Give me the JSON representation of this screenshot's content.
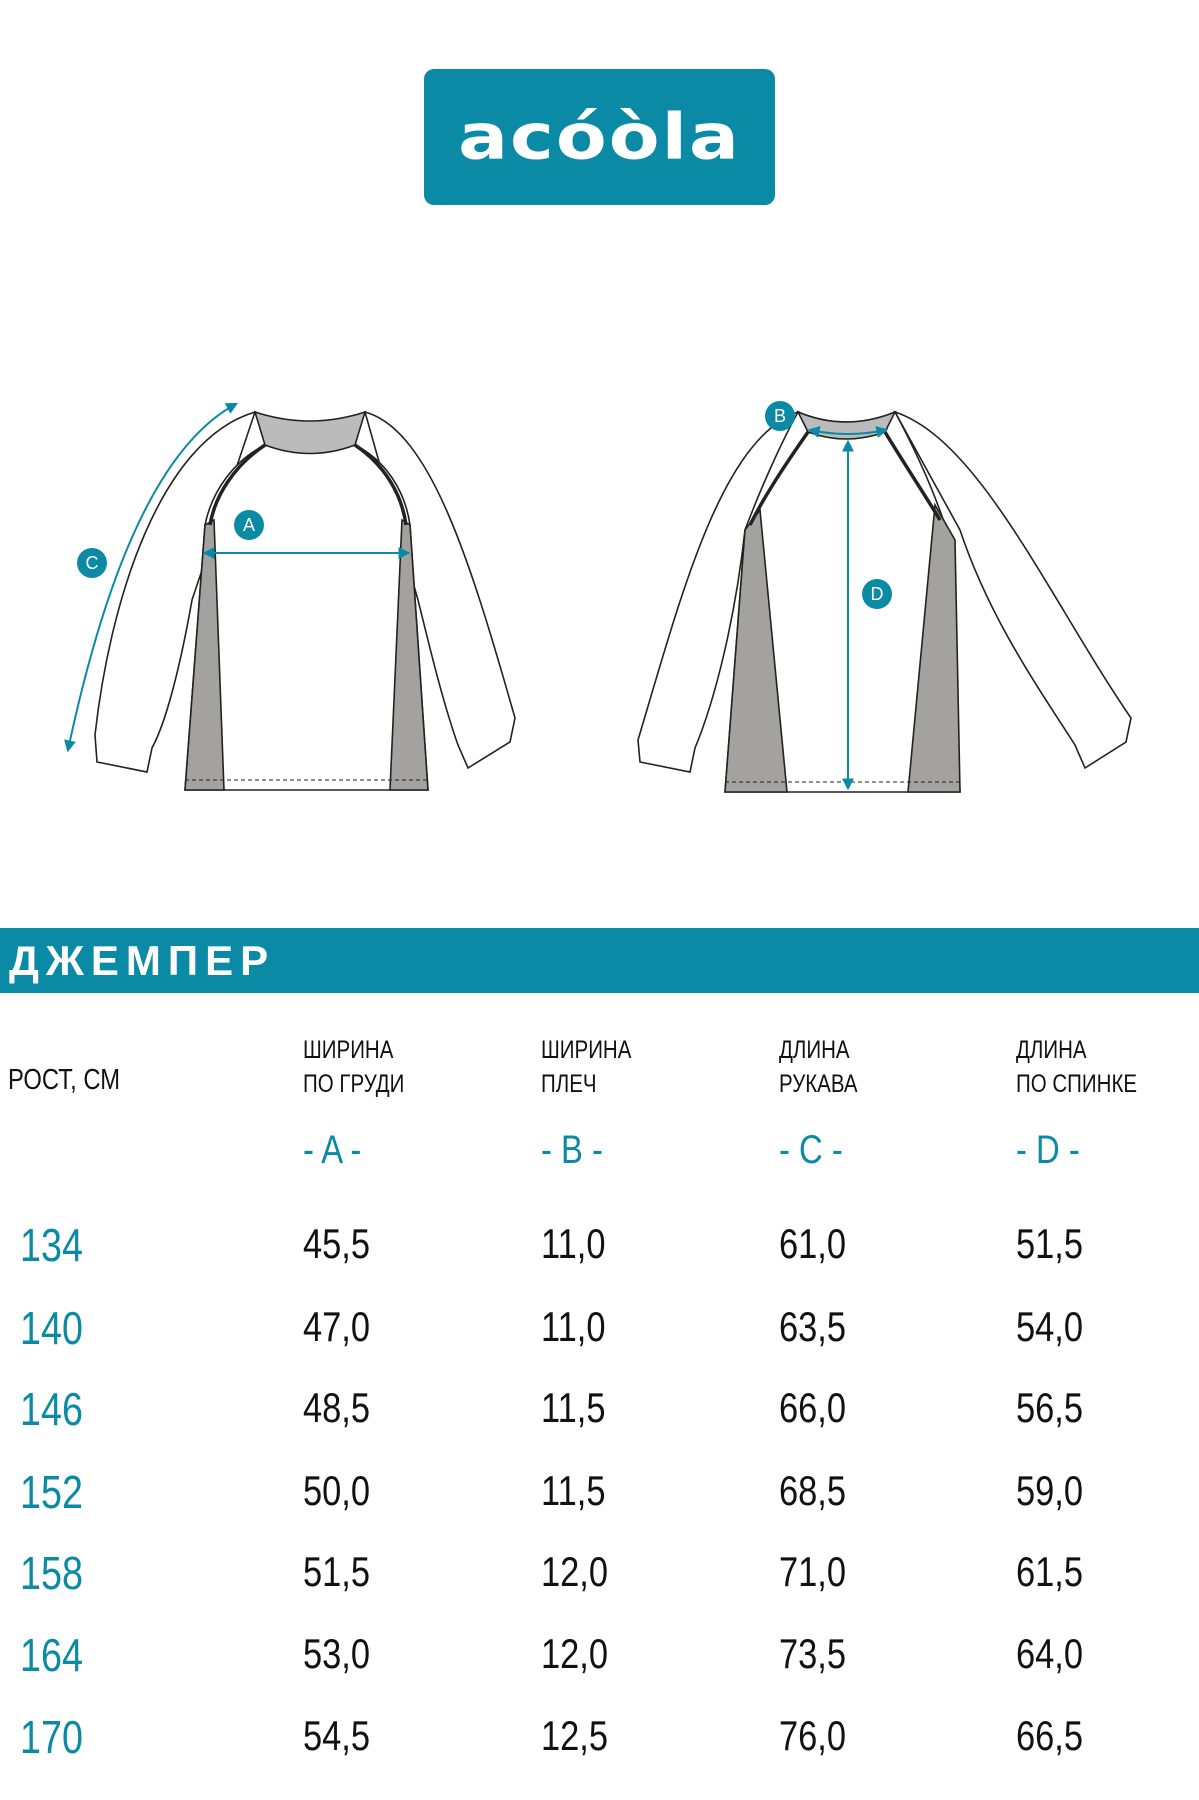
{
  "brand": {
    "logo_text": "acóòla",
    "color": "#0b8aa6"
  },
  "diagram": {
    "markers": [
      "A",
      "B",
      "C",
      "D"
    ]
  },
  "product_title": "ДЖЕМПЕР",
  "table": {
    "first_header": "РОСТ, СМ",
    "columns": [
      {
        "line1": "ШИРИНА",
        "line2": "ПО ГРУДИ",
        "letter": "- A -"
      },
      {
        "line1": "ШИРИНА",
        "line2": "ПЛЕЧ",
        "letter": "- B -"
      },
      {
        "line1": "ДЛИНА",
        "line2": "РУКАВА",
        "letter": "- C -"
      },
      {
        "line1": "ДЛИНА",
        "line2": "ПО СПИНКЕ",
        "letter": "- D -"
      }
    ],
    "rows": [
      {
        "size": "134",
        "values": [
          "45,5",
          "11,0",
          "61,0",
          "51,5"
        ]
      },
      {
        "size": "140",
        "values": [
          "47,0",
          "11,0",
          "63,5",
          "54,0"
        ]
      },
      {
        "size": "146",
        "values": [
          "48,5",
          "11,5",
          "66,0",
          "56,5"
        ]
      },
      {
        "size": "152",
        "values": [
          "50,0",
          "11,5",
          "68,5",
          "59,0"
        ]
      },
      {
        "size": "158",
        "values": [
          "51,5",
          "12,0",
          "71,0",
          "61,5"
        ]
      },
      {
        "size": "164",
        "values": [
          "53,0",
          "12,0",
          "73,5",
          "64,0"
        ]
      },
      {
        "size": "170",
        "values": [
          "54,5",
          "12,5",
          "76,0",
          "66,5"
        ]
      }
    ]
  }
}
